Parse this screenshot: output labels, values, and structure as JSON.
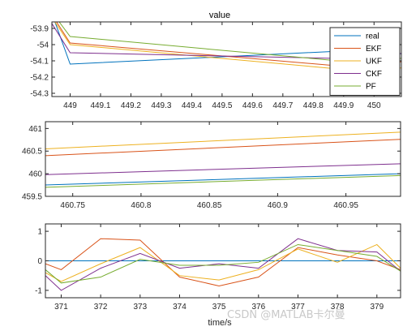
{
  "watermark": "CSDN @MATLAB卡尔曼",
  "colors": {
    "real": "#0072BD",
    "EKF": "#D95319",
    "UKF": "#EDB120",
    "CKF": "#7E2F8E",
    "PF": "#77AC30",
    "axis": "#262626",
    "zeroLine": "#0072BD"
  },
  "chart_data": [
    {
      "type": "line",
      "title": "value",
      "xlabel": "",
      "ylabel": "",
      "xlim": [
        448.94,
        450.09
      ],
      "ylim": [
        -54.32,
        -53.86
      ],
      "xticks": [
        449,
        449.1,
        449.2,
        449.3,
        449.4,
        449.5,
        449.6,
        449.7,
        449.8,
        449.9,
        450
      ],
      "xticklabels": [
        "449",
        "449.1",
        "449.2",
        "449.3",
        "449.4",
        "449.5",
        "449.6",
        "449.7",
        "449.8",
        "449.9",
        "450"
      ],
      "yticks": [
        -53.9,
        -54,
        -54.1,
        -54.2,
        -54.3
      ],
      "yticklabels": [
        "-53.9",
        "-54",
        "-54.1",
        "-54.2",
        "-54.3"
      ],
      "legend": {
        "position": "top-right",
        "entries": [
          "real",
          "EKF",
          "UKF",
          "CKF",
          "PF"
        ]
      },
      "series": [
        {
          "name": "real",
          "x": [
            448.9,
            449.0,
            450.0,
            450.1
          ],
          "y": [
            -53.6,
            -54.12,
            -54.03,
            -54.06
          ]
        },
        {
          "name": "EKF",
          "x": [
            448.9,
            449.0,
            450.0,
            450.1
          ],
          "y": [
            -53.7,
            -53.99,
            -54.15,
            -54.1
          ]
        },
        {
          "name": "UKF",
          "x": [
            448.9,
            449.0,
            450.0,
            450.1
          ],
          "y": [
            -53.72,
            -54.0,
            -54.17,
            -54.14
          ]
        },
        {
          "name": "CKF",
          "x": [
            448.9,
            449.0,
            450.0,
            450.1
          ],
          "y": [
            -53.75,
            -54.05,
            -54.09,
            -54.05
          ]
        },
        {
          "name": "PF",
          "x": [
            448.9,
            449.0,
            450.0,
            450.1
          ],
          "y": [
            -53.7,
            -53.95,
            -54.12,
            -54.08
          ]
        }
      ]
    },
    {
      "type": "line",
      "title": "",
      "xlabel": "",
      "ylabel": "",
      "xlim": [
        460.73,
        460.99
      ],
      "ylim": [
        459.5,
        461.15
      ],
      "xticks": [
        460.75,
        460.8,
        460.85,
        460.9,
        460.95
      ],
      "xticklabels": [
        "460.75",
        "460.8",
        "460.85",
        "460.9",
        "460.95"
      ],
      "yticks": [
        459.5,
        460,
        460.5,
        461
      ],
      "yticklabels": [
        "459.5",
        "460",
        "460.5",
        "461"
      ],
      "series": [
        {
          "name": "real",
          "x": [
            460.73,
            460.99
          ],
          "y": [
            459.75,
            460.0
          ]
        },
        {
          "name": "EKF",
          "x": [
            460.73,
            460.99
          ],
          "y": [
            460.4,
            460.76
          ]
        },
        {
          "name": "UKF",
          "x": [
            460.73,
            460.99
          ],
          "y": [
            460.55,
            460.92
          ]
        },
        {
          "name": "CKF",
          "x": [
            460.73,
            460.99
          ],
          "y": [
            459.98,
            460.22
          ]
        },
        {
          "name": "PF",
          "x": [
            460.73,
            460.99
          ],
          "y": [
            459.7,
            459.96
          ]
        }
      ]
    },
    {
      "type": "line",
      "title": "",
      "xlabel": "time/s",
      "ylabel": "",
      "xlim": [
        370.6,
        379.6
      ],
      "ylim": [
        -1.25,
        1.25
      ],
      "xticks": [
        371,
        372,
        373,
        374,
        375,
        376,
        377,
        378,
        379
      ],
      "xticklabels": [
        "371",
        "372",
        "373",
        "374",
        "375",
        "376",
        "377",
        "378",
        "379"
      ],
      "yticks": [
        1,
        0,
        -1
      ],
      "yticklabels": [
        "1",
        "0",
        "-1"
      ],
      "series": [
        {
          "name": "real",
          "x": [
            370.6,
            379.6
          ],
          "y": [
            0,
            0
          ]
        },
        {
          "name": "EKF",
          "x": [
            370.6,
            371,
            372,
            373,
            374,
            375,
            376,
            377,
            378,
            379,
            379.6
          ],
          "y": [
            -0.1,
            -0.3,
            0.75,
            0.7,
            -0.55,
            -0.85,
            -0.55,
            0.45,
            0.2,
            0.0,
            -0.3
          ]
        },
        {
          "name": "UKF",
          "x": [
            370.6,
            371,
            372,
            373,
            374,
            375,
            376,
            377,
            378,
            379,
            379.6
          ],
          "y": [
            -0.4,
            -0.7,
            -0.1,
            0.45,
            -0.5,
            -0.65,
            -0.3,
            0.4,
            -0.05,
            0.55,
            -0.25
          ]
        },
        {
          "name": "CKF",
          "x": [
            370.6,
            371,
            372,
            373,
            374,
            375,
            376,
            377,
            378,
            379,
            379.6
          ],
          "y": [
            -0.5,
            -1.0,
            -0.25,
            0.25,
            -0.25,
            -0.1,
            -0.25,
            0.75,
            0.35,
            0.3,
            -0.35
          ]
        },
        {
          "name": "PF",
          "x": [
            370.6,
            371,
            372,
            373,
            374,
            375,
            376,
            377,
            378,
            379,
            379.6
          ],
          "y": [
            -0.3,
            -0.75,
            -0.55,
            0.05,
            -0.15,
            -0.15,
            -0.05,
            0.55,
            0.35,
            0.15,
            -0.35
          ]
        }
      ]
    }
  ]
}
